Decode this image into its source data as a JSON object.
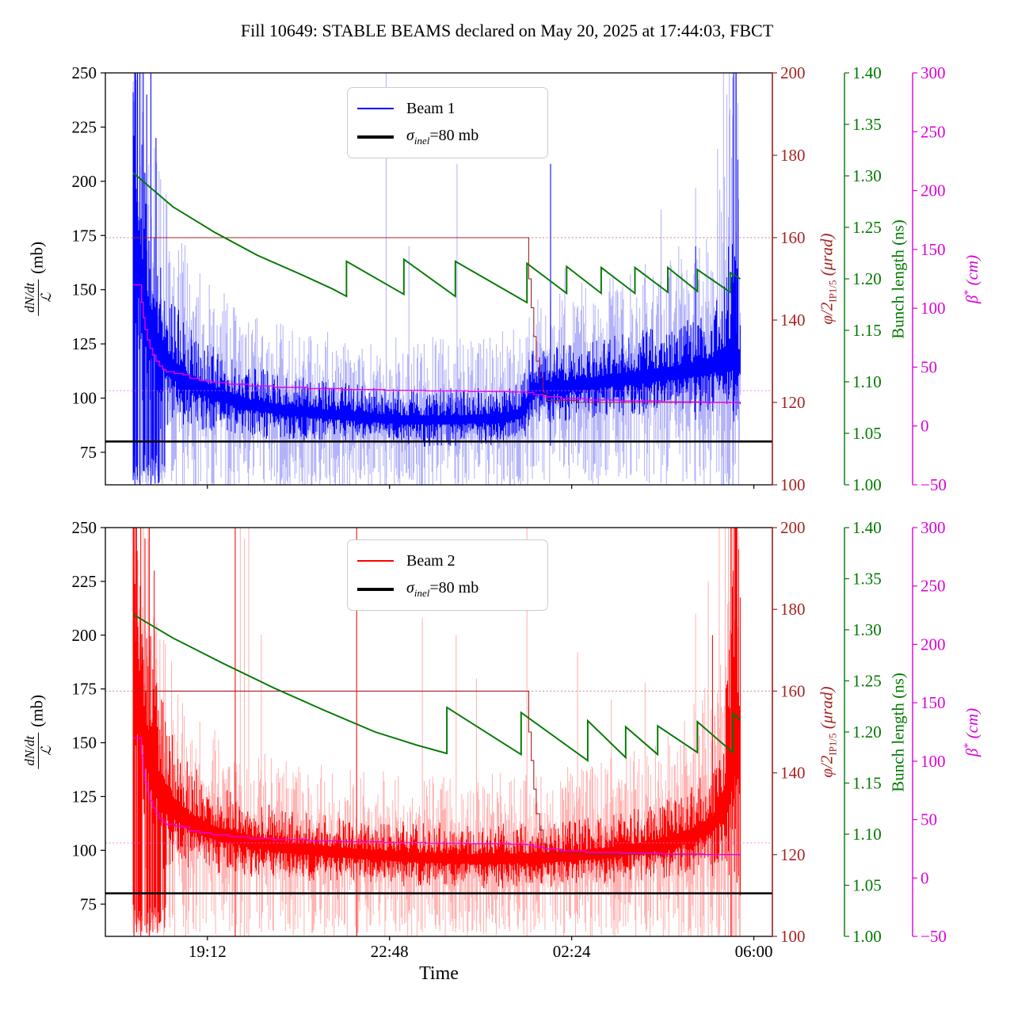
{
  "title": "Fill 10649: STABLE BEAMS declared on May 20, 2025 at 17:44:03, FBCT",
  "chart_data": {
    "type": "line",
    "shared_axes": {
      "x": {
        "label": "Time",
        "tick_labels": [
          "19:12",
          "22:48",
          "02:24",
          "06:00"
        ],
        "tick_minutes": [
          121,
          337,
          553,
          769
        ],
        "domain_minutes": [
          0,
          791
        ],
        "start_time": "17:11",
        "data_start_minute": 33,
        "data_end_minute": 753
      },
      "y_left": {
        "label_num": "dN/dt",
        "label_den": "ℒ",
        "label_unit": "(mb)",
        "range": [
          60,
          250
        ],
        "ticks": [
          "250",
          "225",
          "200",
          "175",
          "150",
          "125",
          "100",
          "75"
        ],
        "tick_values": [
          250,
          225,
          200,
          175,
          150,
          125,
          100,
          75
        ],
        "color": "#000000"
      },
      "y_phi": {
        "label_main": "φ/2",
        "label_sub": "IP1/5",
        "label_unit": " (μrad)",
        "range": [
          100,
          200
        ],
        "ticks": [
          "200",
          "180",
          "160",
          "140",
          "120",
          "100"
        ],
        "tick_values": [
          200,
          180,
          160,
          140,
          120,
          100
        ],
        "color": "#a52222"
      },
      "y_ns": {
        "label": "Bunch length (ns)",
        "range": [
          1.0,
          1.4
        ],
        "ticks": [
          "1.40",
          "1.35",
          "1.30",
          "1.25",
          "1.20",
          "1.15",
          "1.10",
          "1.05",
          "1.00"
        ],
        "tick_values": [
          1.4,
          1.35,
          1.3,
          1.25,
          1.2,
          1.15,
          1.1,
          1.05,
          1.0
        ],
        "color": "#007800"
      },
      "y_beta": {
        "label_main": "β",
        "label_sup": "*",
        "label_unit": " (cm)",
        "range": [
          -50,
          300
        ],
        "ticks": [
          "300",
          "250",
          "200",
          "150",
          "100",
          "50",
          "0",
          "−50"
        ],
        "tick_values": [
          300,
          250,
          200,
          150,
          100,
          50,
          0,
          -50
        ],
        "color": "#d902d9"
      }
    },
    "machine": {
      "sigma_inel_mb": 80,
      "phi_ref_dotted_urad": 160,
      "beta_ref_dotted_cm": 30,
      "phi_half_crossing_steps": [
        [
          33,
          160
        ],
        [
          498,
          160
        ],
        [
          502,
          150
        ],
        [
          505,
          143
        ],
        [
          508,
          136
        ],
        [
          511,
          130
        ],
        [
          515,
          126
        ],
        [
          519,
          122.5
        ],
        [
          524,
          120.5
        ],
        [
          560,
          120
        ],
        [
          753,
          119.6
        ]
      ],
      "beta_star_steps": [
        [
          33,
          120
        ],
        [
          41,
          120
        ],
        [
          43,
          105
        ],
        [
          45,
          92
        ],
        [
          47,
          82
        ],
        [
          50,
          73
        ],
        [
          53,
          66
        ],
        [
          56,
          60
        ],
        [
          60,
          55
        ],
        [
          64,
          51
        ],
        [
          68,
          48
        ],
        [
          72,
          46
        ],
        [
          82,
          44.5
        ],
        [
          92,
          43.5
        ],
        [
          100,
          40.5
        ],
        [
          112,
          38.5
        ],
        [
          126,
          37
        ],
        [
          146,
          35.5
        ],
        [
          170,
          34
        ],
        [
          200,
          32.8
        ],
        [
          240,
          31.8
        ],
        [
          280,
          31
        ],
        [
          330,
          30.3
        ],
        [
          380,
          29.8
        ],
        [
          430,
          29.3
        ],
        [
          480,
          28.9
        ],
        [
          500,
          28.4
        ],
        [
          508,
          26.5
        ],
        [
          520,
          24.8
        ],
        [
          540,
          23.2
        ],
        [
          570,
          22
        ],
        [
          610,
          21.2
        ],
        [
          660,
          20.5
        ],
        [
          710,
          20
        ],
        [
          753,
          19.6
        ]
      ]
    },
    "subplots": [
      {
        "name": "beam1",
        "legend": {
          "beam": "Beam 1",
          "sigma_sym": "σ",
          "sigma_sub": "inel",
          "sigma_rest": "=80 mb"
        },
        "beam_color": "#0000ff",
        "beam_light_color": "#b3b3fa",
        "noise": {
          "dip_prob": 0.1,
          "seed": 1234567
        },
        "cross_section_envelope": [
          [
            33,
            190,
            70,
            110
          ],
          [
            40,
            160,
            55,
            95
          ],
          [
            48,
            142,
            45,
            80
          ],
          [
            60,
            125,
            32,
            60
          ],
          [
            80,
            113,
            22,
            48
          ],
          [
            100,
            107,
            17,
            40
          ],
          [
            130,
            102,
            14,
            34
          ],
          [
            170,
            97,
            12,
            30
          ],
          [
            220,
            94,
            11,
            28
          ],
          [
            280,
            92,
            10,
            26
          ],
          [
            350,
            90,
            10,
            26
          ],
          [
            420,
            90,
            10,
            26
          ],
          [
            470,
            91,
            10,
            27
          ],
          [
            495,
            93,
            11,
            28
          ],
          [
            505,
            104,
            13,
            30
          ],
          [
            560,
            106,
            13,
            32
          ],
          [
            620,
            109,
            14,
            34
          ],
          [
            680,
            112,
            15,
            36
          ],
          [
            720,
            115,
            17,
            40
          ],
          [
            742,
            120,
            30,
            80
          ],
          [
            753,
            116,
            20,
            50
          ]
        ],
        "spikes_light": [
          [
            333,
            252,
            60
          ],
          [
            360,
            170,
            75
          ],
          [
            417,
            208,
            80
          ],
          [
            545,
            160,
            78
          ],
          [
            659,
            187,
            80
          ],
          [
            680,
            170,
            82
          ],
          [
            700,
            197,
            85
          ],
          [
            726,
            215,
            85
          ],
          [
            733,
            252,
            60
          ],
          [
            737,
            240,
            88
          ],
          [
            740,
            252,
            90
          ],
          [
            744,
            248,
            60
          ],
          [
            747,
            252,
            92
          ],
          [
            750,
            236,
            90
          ]
        ],
        "spikes_dark": [
          [
            35,
            252,
            60
          ],
          [
            38,
            252,
            64
          ],
          [
            41,
            252,
            60
          ],
          [
            45,
            252,
            70
          ],
          [
            49,
            240,
            68
          ],
          [
            54,
            252,
            60
          ],
          [
            60,
            220,
            70
          ],
          [
            528,
            208,
            78
          ],
          [
            700,
            170,
            90
          ],
          [
            745,
            252,
            95
          ],
          [
            748,
            252,
            92
          ],
          [
            750,
            210,
            95
          ]
        ],
        "bunch_length_ns": [
          [
            33,
            1.303
          ],
          [
            80,
            1.27
          ],
          [
            130,
            1.245
          ],
          [
            180,
            1.223
          ],
          [
            230,
            1.205
          ],
          [
            270,
            1.19
          ],
          [
            286,
            1.183
          ],
          [
            286,
            1.217
          ],
          [
            354,
            1.185
          ],
          [
            354,
            1.219
          ],
          [
            415,
            1.183
          ],
          [
            415,
            1.217
          ],
          [
            500,
            1.177
          ],
          [
            500,
            1.215
          ],
          [
            547,
            1.186
          ],
          [
            547,
            1.212
          ],
          [
            588,
            1.186
          ],
          [
            588,
            1.211
          ],
          [
            628,
            1.186
          ],
          [
            628,
            1.211
          ],
          [
            667,
            1.187
          ],
          [
            667,
            1.211
          ],
          [
            702,
            1.188
          ],
          [
            702,
            1.209
          ],
          [
            741,
            1.187
          ],
          [
            741,
            1.206
          ],
          [
            753,
            1.2
          ]
        ]
      },
      {
        "name": "beam2",
        "legend": {
          "beam": "Beam 2",
          "sigma_sym": "σ",
          "sigma_sub": "inel",
          "sigma_rest": "=80 mb"
        },
        "beam_color": "#ff0000",
        "beam_light_color": "#ffb3b3",
        "noise": {
          "dip_prob": 0.14,
          "seed": 7654321
        },
        "cross_section_envelope": [
          [
            33,
            200,
            60,
            100
          ],
          [
            40,
            172,
            55,
            90
          ],
          [
            48,
            152,
            45,
            75
          ],
          [
            60,
            133,
            33,
            58
          ],
          [
            80,
            120,
            24,
            45
          ],
          [
            100,
            113,
            19,
            38
          ],
          [
            130,
            108,
            15,
            33
          ],
          [
            170,
            104,
            13,
            30
          ],
          [
            220,
            101,
            12,
            28
          ],
          [
            280,
            99,
            11,
            27
          ],
          [
            350,
            97,
            11,
            26
          ],
          [
            420,
            96,
            11,
            26
          ],
          [
            480,
            96,
            11,
            27
          ],
          [
            540,
            97,
            11,
            28
          ],
          [
            600,
            99,
            12,
            30
          ],
          [
            650,
            102,
            13,
            33
          ],
          [
            690,
            106,
            15,
            38
          ],
          [
            720,
            112,
            18,
            48
          ],
          [
            738,
            125,
            30,
            75
          ],
          [
            748,
            150,
            60,
            110
          ],
          [
            753,
            135,
            45,
            90
          ]
        ],
        "spikes_dark": [
          [
            34,
            252,
            60
          ],
          [
            37,
            252,
            62
          ],
          [
            42,
            252,
            60
          ],
          [
            47,
            245,
            65
          ],
          [
            52,
            252,
            60
          ],
          [
            58,
            230,
            70
          ],
          [
            154,
            252,
            60
          ],
          [
            298,
            252,
            60
          ],
          [
            720,
            200,
            88
          ],
          [
            742,
            252,
            60
          ],
          [
            746,
            252,
            90
          ],
          [
            749,
            252,
            85
          ],
          [
            751,
            240,
            88
          ]
        ],
        "spikes_light": [
          [
            160,
            252,
            60
          ],
          [
            165,
            245,
            60
          ],
          [
            170,
            252,
            60
          ],
          [
            185,
            200,
            62
          ],
          [
            376,
            208,
            62
          ],
          [
            416,
            200,
            64
          ],
          [
            440,
            180,
            66
          ],
          [
            500,
            252,
            60
          ],
          [
            560,
            192,
            66
          ],
          [
            600,
            170,
            64
          ],
          [
            640,
            178,
            66
          ],
          [
            700,
            210,
            64
          ],
          [
            715,
            225,
            60
          ],
          [
            728,
            252,
            60
          ],
          [
            735,
            252,
            60
          ],
          [
            739,
            252,
            60
          ],
          [
            743,
            252,
            60
          ],
          [
            747,
            252,
            60
          ]
        ],
        "bunch_length_ns": [
          [
            33,
            1.315
          ],
          [
            80,
            1.292
          ],
          [
            140,
            1.267
          ],
          [
            200,
            1.243
          ],
          [
            260,
            1.221
          ],
          [
            320,
            1.2
          ],
          [
            370,
            1.187
          ],
          [
            405,
            1.179
          ],
          [
            405,
            1.224
          ],
          [
            493,
            1.178
          ],
          [
            493,
            1.219
          ],
          [
            572,
            1.172
          ],
          [
            572,
            1.211
          ],
          [
            617,
            1.175
          ],
          [
            617,
            1.205
          ],
          [
            655,
            1.178
          ],
          [
            655,
            1.206
          ],
          [
            702,
            1.18
          ],
          [
            702,
            1.21
          ],
          [
            744,
            1.18
          ],
          [
            744,
            1.218
          ],
          [
            753,
            1.212
          ]
        ]
      }
    ]
  }
}
